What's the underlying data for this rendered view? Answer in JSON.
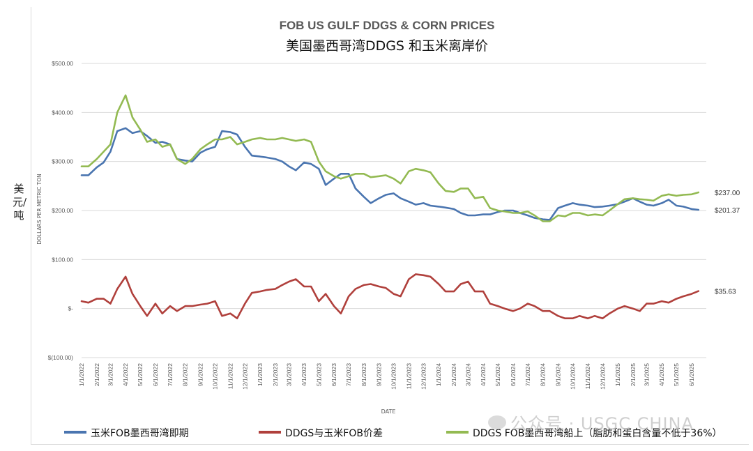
{
  "outer_label": "美元/吨",
  "watermark": "公众号 · USGC CHINA",
  "colors": {
    "corn": "#4a75b0",
    "spread": "#b0403c",
    "ddgs": "#93ba52",
    "grid": "#d9d9d9",
    "text": "#595959"
  },
  "chart_data": {
    "type": "line",
    "title": "FOB US GULF DDGS & CORN PRICES",
    "subtitle": "美国墨西哥湾DDGS 和玉米离岸价",
    "xlabel": "DATE",
    "ylabel": "DOLLARS PER METRIC TON",
    "ylim": [
      -100,
      500
    ],
    "yticks": [
      -100,
      0,
      100,
      200,
      300,
      400,
      500
    ],
    "ytick_labels": [
      "$(100.00)",
      "$-",
      "$100.00",
      "$200.00",
      "$300.00",
      "$400.00",
      "$500.00"
    ],
    "xlim": [
      "1/1/2022",
      "7/1/2025"
    ],
    "xtick_labels": [
      "1/1/2022",
      "2/1/2022",
      "3/1/2022",
      "4/1/2022",
      "5/1/2022",
      "6/1/2022",
      "7/1/2022",
      "8/1/2022",
      "9/1/2022",
      "10/1/2022",
      "11/1/2022",
      "12/1/2022",
      "1/1/2023",
      "2/1/2023",
      "3/1/2023",
      "4/1/2023",
      "5/1/2023",
      "6/1/2023",
      "7/1/2023",
      "8/1/2023",
      "9/1/2023",
      "10/1/2023",
      "11/1/2023",
      "12/1/2023",
      "1/1/2024",
      "2/1/2024",
      "3/1/2024",
      "4/1/2024",
      "5/1/2024",
      "6/1/2024",
      "7/1/2024",
      "8/1/2024",
      "9/1/2024",
      "10/1/2024",
      "11/1/2024",
      "12/1/2024",
      "1/1/2025",
      "2/1/2025",
      "3/1/2025",
      "4/1/2025",
      "5/1/2025",
      "6/1/2025"
    ],
    "legend_position": "bottom",
    "grid": true,
    "series": [
      {
        "name": "玉米FOB墨西哥湾即期",
        "color": "#4a75b0",
        "end_label": "$201.37",
        "points": [
          [
            "1/1/2022",
            272
          ],
          [
            "1/15/2022",
            272
          ],
          [
            "2/1/2022",
            288
          ],
          [
            "2/15/2022",
            298
          ],
          [
            "3/1/2022",
            320
          ],
          [
            "3/15/2022",
            362
          ],
          [
            "4/1/2022",
            368
          ],
          [
            "4/15/2022",
            358
          ],
          [
            "5/1/2022",
            362
          ],
          [
            "5/15/2022",
            352
          ],
          [
            "6/1/2022",
            338
          ],
          [
            "6/15/2022",
            340
          ],
          [
            "7/1/2022",
            335
          ],
          [
            "7/15/2022",
            305
          ],
          [
            "8/1/2022",
            302
          ],
          [
            "8/15/2022",
            300
          ],
          [
            "9/1/2022",
            318
          ],
          [
            "9/15/2022",
            325
          ],
          [
            "10/1/2022",
            330
          ],
          [
            "10/15/2022",
            362
          ],
          [
            "11/1/2022",
            360
          ],
          [
            "11/15/2022",
            355
          ],
          [
            "12/1/2022",
            330
          ],
          [
            "12/15/2022",
            312
          ],
          [
            "1/1/2023",
            310
          ],
          [
            "1/15/2023",
            308
          ],
          [
            "2/1/2023",
            305
          ],
          [
            "2/15/2023",
            300
          ],
          [
            "3/1/2023",
            290
          ],
          [
            "3/15/2023",
            282
          ],
          [
            "4/1/2023",
            298
          ],
          [
            "4/15/2023",
            295
          ],
          [
            "5/1/2023",
            285
          ],
          [
            "5/15/2023",
            252
          ],
          [
            "6/1/2023",
            265
          ],
          [
            "6/15/2023",
            275
          ],
          [
            "7/1/2023",
            275
          ],
          [
            "7/15/2023",
            245
          ],
          [
            "8/1/2023",
            228
          ],
          [
            "8/15/2023",
            215
          ],
          [
            "9/1/2023",
            225
          ],
          [
            "9/15/2023",
            232
          ],
          [
            "10/1/2023",
            235
          ],
          [
            "10/15/2023",
            225
          ],
          [
            "11/1/2023",
            218
          ],
          [
            "11/15/2023",
            212
          ],
          [
            "12/1/2023",
            215
          ],
          [
            "12/15/2023",
            210
          ],
          [
            "1/1/2024",
            208
          ],
          [
            "1/15/2024",
            206
          ],
          [
            "2/1/2024",
            203
          ],
          [
            "2/15/2024",
            195
          ],
          [
            "3/1/2024",
            190
          ],
          [
            "3/15/2024",
            190
          ],
          [
            "4/1/2024",
            192
          ],
          [
            "4/15/2024",
            192
          ],
          [
            "5/1/2024",
            197
          ],
          [
            "5/15/2024",
            200
          ],
          [
            "6/1/2024",
            200
          ],
          [
            "6/15/2024",
            195
          ],
          [
            "7/1/2024",
            190
          ],
          [
            "7/15/2024",
            185
          ],
          [
            "8/1/2024",
            182
          ],
          [
            "8/15/2024",
            181
          ],
          [
            "9/1/2024",
            205
          ],
          [
            "9/15/2024",
            210
          ],
          [
            "10/1/2024",
            215
          ],
          [
            "10/15/2024",
            212
          ],
          [
            "11/1/2024",
            210
          ],
          [
            "11/15/2024",
            207
          ],
          [
            "12/1/2024",
            208
          ],
          [
            "12/15/2024",
            210
          ],
          [
            "1/1/2025",
            213
          ],
          [
            "1/15/2025",
            218
          ],
          [
            "2/1/2025",
            225
          ],
          [
            "2/15/2025",
            218
          ],
          [
            "3/1/2025",
            212
          ],
          [
            "3/15/2025",
            210
          ],
          [
            "4/1/2025",
            215
          ],
          [
            "4/15/2025",
            222
          ],
          [
            "5/1/2025",
            210
          ],
          [
            "5/15/2025",
            208
          ],
          [
            "6/1/2025",
            203
          ],
          [
            "6/15/2025",
            201.37
          ]
        ]
      },
      {
        "name": "DDGS与玉米FOB价差",
        "color": "#b0403c",
        "end_label": "$35.63",
        "points": [
          [
            "1/1/2022",
            15
          ],
          [
            "1/15/2022",
            12
          ],
          [
            "2/1/2022",
            20
          ],
          [
            "2/15/2022",
            20
          ],
          [
            "3/1/2022",
            10
          ],
          [
            "3/15/2022",
            40
          ],
          [
            "4/1/2022",
            65
          ],
          [
            "4/15/2022",
            30
          ],
          [
            "5/1/2022",
            5
          ],
          [
            "5/15/2022",
            -15
          ],
          [
            "6/1/2022",
            10
          ],
          [
            "6/15/2022",
            -10
          ],
          [
            "7/1/2022",
            5
          ],
          [
            "7/15/2022",
            -5
          ],
          [
            "8/1/2022",
            5
          ],
          [
            "8/15/2022",
            5
          ],
          [
            "9/1/2022",
            8
          ],
          [
            "9/15/2022",
            10
          ],
          [
            "10/1/2022",
            15
          ],
          [
            "10/15/2022",
            -15
          ],
          [
            "11/1/2022",
            -10
          ],
          [
            "11/15/2022",
            -20
          ],
          [
            "12/1/2022",
            10
          ],
          [
            "12/15/2022",
            32
          ],
          [
            "1/1/2023",
            35
          ],
          [
            "1/15/2023",
            38
          ],
          [
            "2/1/2023",
            40
          ],
          [
            "2/15/2023",
            48
          ],
          [
            "3/1/2023",
            55
          ],
          [
            "3/15/2023",
            60
          ],
          [
            "4/1/2023",
            45
          ],
          [
            "4/15/2023",
            45
          ],
          [
            "5/1/2023",
            15
          ],
          [
            "5/15/2023",
            30
          ],
          [
            "6/1/2023",
            5
          ],
          [
            "6/15/2023",
            -10
          ],
          [
            "7/1/2023",
            25
          ],
          [
            "7/15/2023",
            40
          ],
          [
            "8/1/2023",
            48
          ],
          [
            "8/15/2023",
            50
          ],
          [
            "9/1/2023",
            45
          ],
          [
            "9/15/2023",
            42
          ],
          [
            "10/1/2023",
            30
          ],
          [
            "10/15/2023",
            25
          ],
          [
            "11/1/2023",
            60
          ],
          [
            "11/15/2023",
            70
          ],
          [
            "12/1/2023",
            68
          ],
          [
            "12/15/2023",
            65
          ],
          [
            "1/1/2024",
            50
          ],
          [
            "1/15/2024",
            35
          ],
          [
            "2/1/2024",
            35
          ],
          [
            "2/15/2024",
            50
          ],
          [
            "3/1/2024",
            55
          ],
          [
            "3/15/2024",
            35
          ],
          [
            "4/1/2024",
            35
          ],
          [
            "4/15/2024",
            10
          ],
          [
            "5/1/2024",
            5
          ],
          [
            "5/15/2024",
            0
          ],
          [
            "6/1/2024",
            -5
          ],
          [
            "6/15/2024",
            0
          ],
          [
            "7/1/2024",
            10
          ],
          [
            "7/15/2024",
            5
          ],
          [
            "8/1/2024",
            -5
          ],
          [
            "8/15/2024",
            -5
          ],
          [
            "9/1/2024",
            -15
          ],
          [
            "9/15/2024",
            -20
          ],
          [
            "10/1/2024",
            -20
          ],
          [
            "10/15/2024",
            -15
          ],
          [
            "11/1/2024",
            -20
          ],
          [
            "11/15/2024",
            -15
          ],
          [
            "12/1/2024",
            -20
          ],
          [
            "12/15/2024",
            -10
          ],
          [
            "1/1/2025",
            0
          ],
          [
            "1/15/2025",
            5
          ],
          [
            "2/1/2025",
            0
          ],
          [
            "2/15/2025",
            -5
          ],
          [
            "3/1/2025",
            10
          ],
          [
            "3/15/2025",
            10
          ],
          [
            "4/1/2025",
            15
          ],
          [
            "4/15/2025",
            12
          ],
          [
            "5/1/2025",
            20
          ],
          [
            "5/15/2025",
            25
          ],
          [
            "6/1/2025",
            30
          ],
          [
            "6/15/2025",
            35.63
          ]
        ]
      },
      {
        "name": "DDGS FOB墨西哥湾船上（脂肪和蛋白含量不低于36%）",
        "color": "#93ba52",
        "end_label": "$237.00",
        "points": [
          [
            "1/1/2022",
            290
          ],
          [
            "1/15/2022",
            290
          ],
          [
            "2/1/2022",
            305
          ],
          [
            "2/15/2022",
            320
          ],
          [
            "3/1/2022",
            335
          ],
          [
            "3/15/2022",
            400
          ],
          [
            "4/1/2022",
            435
          ],
          [
            "4/15/2022",
            390
          ],
          [
            "5/1/2022",
            365
          ],
          [
            "5/15/2022",
            340
          ],
          [
            "6/1/2022",
            345
          ],
          [
            "6/15/2022",
            330
          ],
          [
            "7/1/2022",
            335
          ],
          [
            "7/15/2022",
            305
          ],
          [
            "8/1/2022",
            295
          ],
          [
            "8/15/2022",
            305
          ],
          [
            "9/1/2022",
            325
          ],
          [
            "9/15/2022",
            335
          ],
          [
            "10/1/2022",
            345
          ],
          [
            "10/15/2022",
            345
          ],
          [
            "11/1/2022",
            350
          ],
          [
            "11/15/2022",
            335
          ],
          [
            "12/1/2022",
            340
          ],
          [
            "12/15/2022",
            345
          ],
          [
            "1/1/2023",
            348
          ],
          [
            "1/15/2023",
            345
          ],
          [
            "2/1/2023",
            345
          ],
          [
            "2/15/2023",
            348
          ],
          [
            "3/1/2023",
            345
          ],
          [
            "3/15/2023",
            342
          ],
          [
            "4/1/2023",
            345
          ],
          [
            "4/15/2023",
            340
          ],
          [
            "5/1/2023",
            300
          ],
          [
            "5/15/2023",
            280
          ],
          [
            "6/1/2023",
            270
          ],
          [
            "6/15/2023",
            265
          ],
          [
            "7/1/2023",
            270
          ],
          [
            "7/15/2023",
            275
          ],
          [
            "8/1/2023",
            275
          ],
          [
            "8/15/2023",
            268
          ],
          [
            "9/1/2023",
            270
          ],
          [
            "9/15/2023",
            272
          ],
          [
            "10/1/2023",
            265
          ],
          [
            "10/15/2023",
            255
          ],
          [
            "11/1/2023",
            280
          ],
          [
            "11/15/2023",
            285
          ],
          [
            "12/1/2023",
            282
          ],
          [
            "12/15/2023",
            278
          ],
          [
            "1/1/2024",
            255
          ],
          [
            "1/15/2024",
            240
          ],
          [
            "2/1/2024",
            238
          ],
          [
            "2/15/2024",
            245
          ],
          [
            "3/1/2024",
            245
          ],
          [
            "3/15/2024",
            225
          ],
          [
            "4/1/2024",
            228
          ],
          [
            "4/15/2024",
            205
          ],
          [
            "5/1/2024",
            200
          ],
          [
            "5/15/2024",
            198
          ],
          [
            "6/1/2024",
            195
          ],
          [
            "6/15/2024",
            195
          ],
          [
            "7/1/2024",
            198
          ],
          [
            "7/15/2024",
            190
          ],
          [
            "8/1/2024",
            178
          ],
          [
            "8/15/2024",
            178
          ],
          [
            "9/1/2024",
            190
          ],
          [
            "9/15/2024",
            188
          ],
          [
            "10/1/2024",
            195
          ],
          [
            "10/15/2024",
            195
          ],
          [
            "11/1/2024",
            190
          ],
          [
            "11/15/2024",
            192
          ],
          [
            "12/1/2024",
            190
          ],
          [
            "12/15/2024",
            200
          ],
          [
            "1/1/2025",
            213
          ],
          [
            "1/15/2025",
            223
          ],
          [
            "2/1/2025",
            225
          ],
          [
            "2/15/2025",
            223
          ],
          [
            "3/1/2025",
            222
          ],
          [
            "3/15/2025",
            220
          ],
          [
            "4/1/2025",
            230
          ],
          [
            "4/15/2025",
            233
          ],
          [
            "5/1/2025",
            230
          ],
          [
            "5/15/2025",
            232
          ],
          [
            "6/1/2025",
            233
          ],
          [
            "6/15/2025",
            237
          ]
        ]
      }
    ]
  }
}
